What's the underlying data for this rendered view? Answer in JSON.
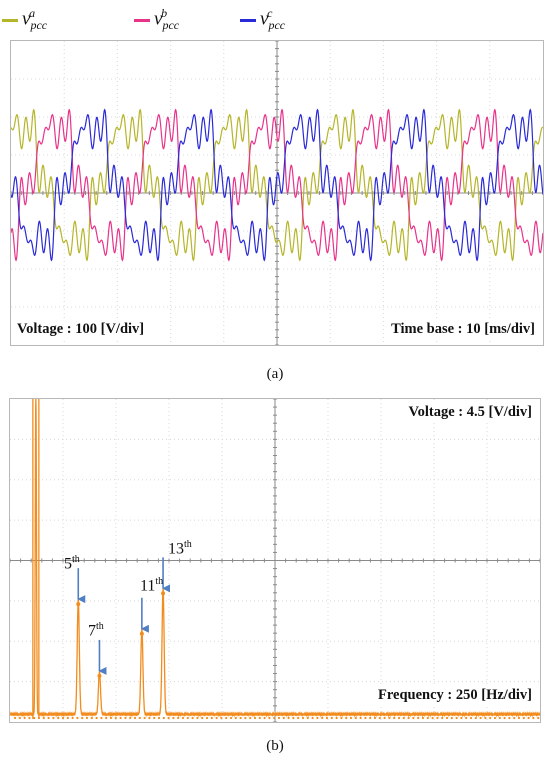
{
  "legend": [
    {
      "base": "v",
      "sub": "pcc",
      "sup": "a",
      "color": "#b5b52a"
    },
    {
      "base": "v",
      "sub": "pcc",
      "sup": "b",
      "color": "#e8338a"
    },
    {
      "base": "v",
      "sub": "pcc",
      "sup": "c",
      "color": "#2a2ad6"
    }
  ],
  "panel_a": {
    "voltage_note": "Voltage : 100 [V/div]",
    "time_note": "Time base : 10 [ms/div]",
    "caption": "(a)"
  },
  "panel_b": {
    "voltage_note": "Voltage : 4.5 [V/div]",
    "freq_note": "Frequency : 250 [Hz/div]",
    "caption": "(b)",
    "harmonics": [
      {
        "num": "5",
        "suffix": "th"
      },
      {
        "num": "7",
        "suffix": "th"
      },
      {
        "num": "11",
        "suffix": "th"
      },
      {
        "num": "13",
        "suffix": "th"
      }
    ]
  },
  "chart_data": [
    {
      "type": "line",
      "x_unit": "ms",
      "y_unit": "V",
      "x_per_div": 10,
      "y_per_div": 100,
      "divisions": {
        "x": 10,
        "y": 8
      },
      "series": [
        {
          "name": "v_pcc^a",
          "color": "#b5b52a",
          "fundamental_hz": 50,
          "amplitude": 160,
          "phase_deg": 0,
          "harmonics": [
            {
              "order": 5,
              "amplitude": 28
            },
            {
              "order": 7,
              "amplitude": 18
            },
            {
              "order": 11,
              "amplitude": 24
            },
            {
              "order": 13,
              "amplitude": 32
            }
          ]
        },
        {
          "name": "v_pcc^b",
          "color": "#e8338a",
          "fundamental_hz": 50,
          "amplitude": 160,
          "phase_deg": -120,
          "harmonics": [
            {
              "order": 5,
              "amplitude": 28
            },
            {
              "order": 7,
              "amplitude": 18
            },
            {
              "order": 11,
              "amplitude": 24
            },
            {
              "order": 13,
              "amplitude": 32
            }
          ]
        },
        {
          "name": "v_pcc^c",
          "color": "#2a2ad6",
          "fundamental_hz": 50,
          "amplitude": 160,
          "phase_deg": 120,
          "harmonics": [
            {
              "order": 5,
              "amplitude": 28
            },
            {
              "order": 7,
              "amplitude": 18
            },
            {
              "order": 11,
              "amplitude": 24
            },
            {
              "order": 13,
              "amplitude": 32
            }
          ]
        }
      ]
    },
    {
      "type": "line",
      "x_unit": "Hz",
      "y_unit": "V",
      "x_per_div": 250,
      "y_per_div": 4.5,
      "divisions": {
        "x": 10,
        "y": 8
      },
      "series": [
        {
          "name": "spectrum",
          "color": "#f28c1e",
          "peaks": [
            {
              "order": 1,
              "freq_hz": 50,
              "magnitude_v": 36
            },
            {
              "order": 5,
              "freq_hz": 250,
              "magnitude_v": 12.8
            },
            {
              "order": 7,
              "freq_hz": 350,
              "magnitude_v": 4.8
            },
            {
              "order": 11,
              "freq_hz": 550,
              "magnitude_v": 9.5
            },
            {
              "order": 13,
              "freq_hz": 650,
              "magnitude_v": 14
            }
          ]
        }
      ]
    }
  ]
}
